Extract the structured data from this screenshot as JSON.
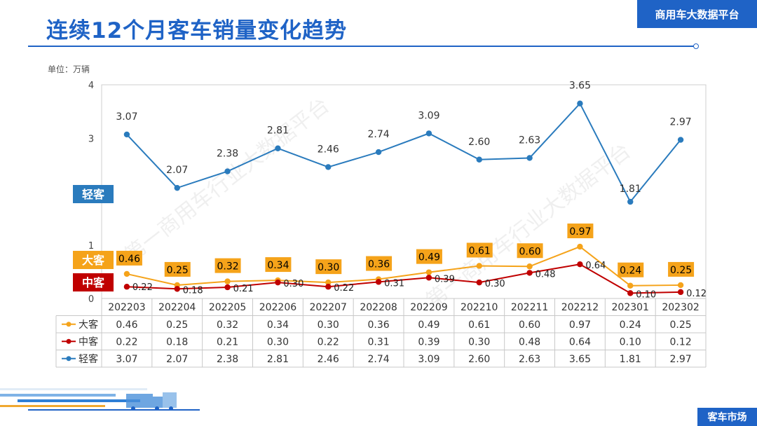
{
  "title": "连续12个月客车销量变化趋势",
  "brand": "商用车大数据平台",
  "unit": "单位：万辆",
  "watermark": "第一商用车行业大数据平台",
  "footer_tag": "客车市场",
  "colors": {
    "accent": "#1f63c6",
    "light": "#2a7bbd",
    "large": "#f5a31a",
    "medium": "#c00000"
  },
  "chart_data": {
    "type": "line",
    "categories": [
      "202203",
      "202204",
      "202205",
      "202206",
      "202207",
      "202208",
      "202209",
      "202210",
      "202211",
      "202212",
      "202301",
      "202302"
    ],
    "ylim": [
      0,
      4
    ],
    "yticks": [
      0,
      1,
      3,
      4
    ],
    "grid": false,
    "series": [
      {
        "name": "大客",
        "color": "#f5a31a",
        "values": [
          0.46,
          0.25,
          0.32,
          0.34,
          0.3,
          0.36,
          0.49,
          0.61,
          0.6,
          0.97,
          0.24,
          0.25
        ]
      },
      {
        "name": "中客",
        "color": "#c00000",
        "values": [
          0.22,
          0.18,
          0.21,
          0.3,
          0.22,
          0.31,
          0.39,
          0.3,
          0.48,
          0.64,
          0.1,
          0.12
        ]
      },
      {
        "name": "轻客",
        "color": "#2a7bbd",
        "values": [
          3.07,
          2.07,
          2.38,
          2.81,
          2.46,
          2.74,
          3.09,
          2.6,
          2.63,
          3.65,
          1.81,
          2.97
        ]
      }
    ]
  }
}
